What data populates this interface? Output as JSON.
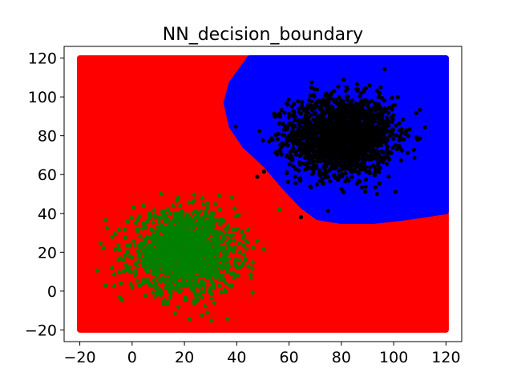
{
  "chart_data": {
    "type": "scatter",
    "title": "NN_decision_boundary",
    "xlabel": "",
    "ylabel": "",
    "xlim": [
      -26,
      126
    ],
    "ylim": [
      -26,
      126
    ],
    "grid": false,
    "xticks": [
      -20,
      0,
      20,
      40,
      60,
      80,
      100,
      120
    ],
    "yticks": [
      -20,
      0,
      20,
      40,
      60,
      80,
      100,
      120
    ],
    "xtick_labels": [
      "−20",
      "0",
      "20",
      "40",
      "60",
      "80",
      "100",
      "120"
    ],
    "ytick_labels": [
      "−20",
      "0",
      "20",
      "40",
      "60",
      "80",
      "100",
      "120"
    ],
    "decision_regions": [
      {
        "label_class": "class_0",
        "color": "#ff0000",
        "x_range": [
          -20,
          120
        ],
        "y_range": [
          -20,
          120
        ]
      },
      {
        "label_class": "class_1",
        "color": "#0000ff",
        "boundary": [
          [
            45,
            120
          ],
          [
            38,
            107
          ],
          [
            36,
            97
          ],
          [
            38,
            85
          ],
          [
            43,
            75
          ],
          [
            51,
            65
          ],
          [
            58,
            54
          ],
          [
            65,
            44
          ],
          [
            71,
            38
          ],
          [
            80,
            36
          ],
          [
            92,
            36
          ],
          [
            105,
            38
          ],
          [
            120,
            41
          ],
          [
            120,
            120
          ]
        ]
      }
    ],
    "series": [
      {
        "color": "#000000",
        "distribution": "gaussian",
        "center": [
          80,
          80
        ],
        "std": [
          10,
          10
        ],
        "count": 2000
      },
      {
        "color": "#008000",
        "distribution": "gaussian",
        "center": [
          20,
          20
        ],
        "std": [
          10,
          10
        ],
        "count": 1500
      }
    ]
  }
}
